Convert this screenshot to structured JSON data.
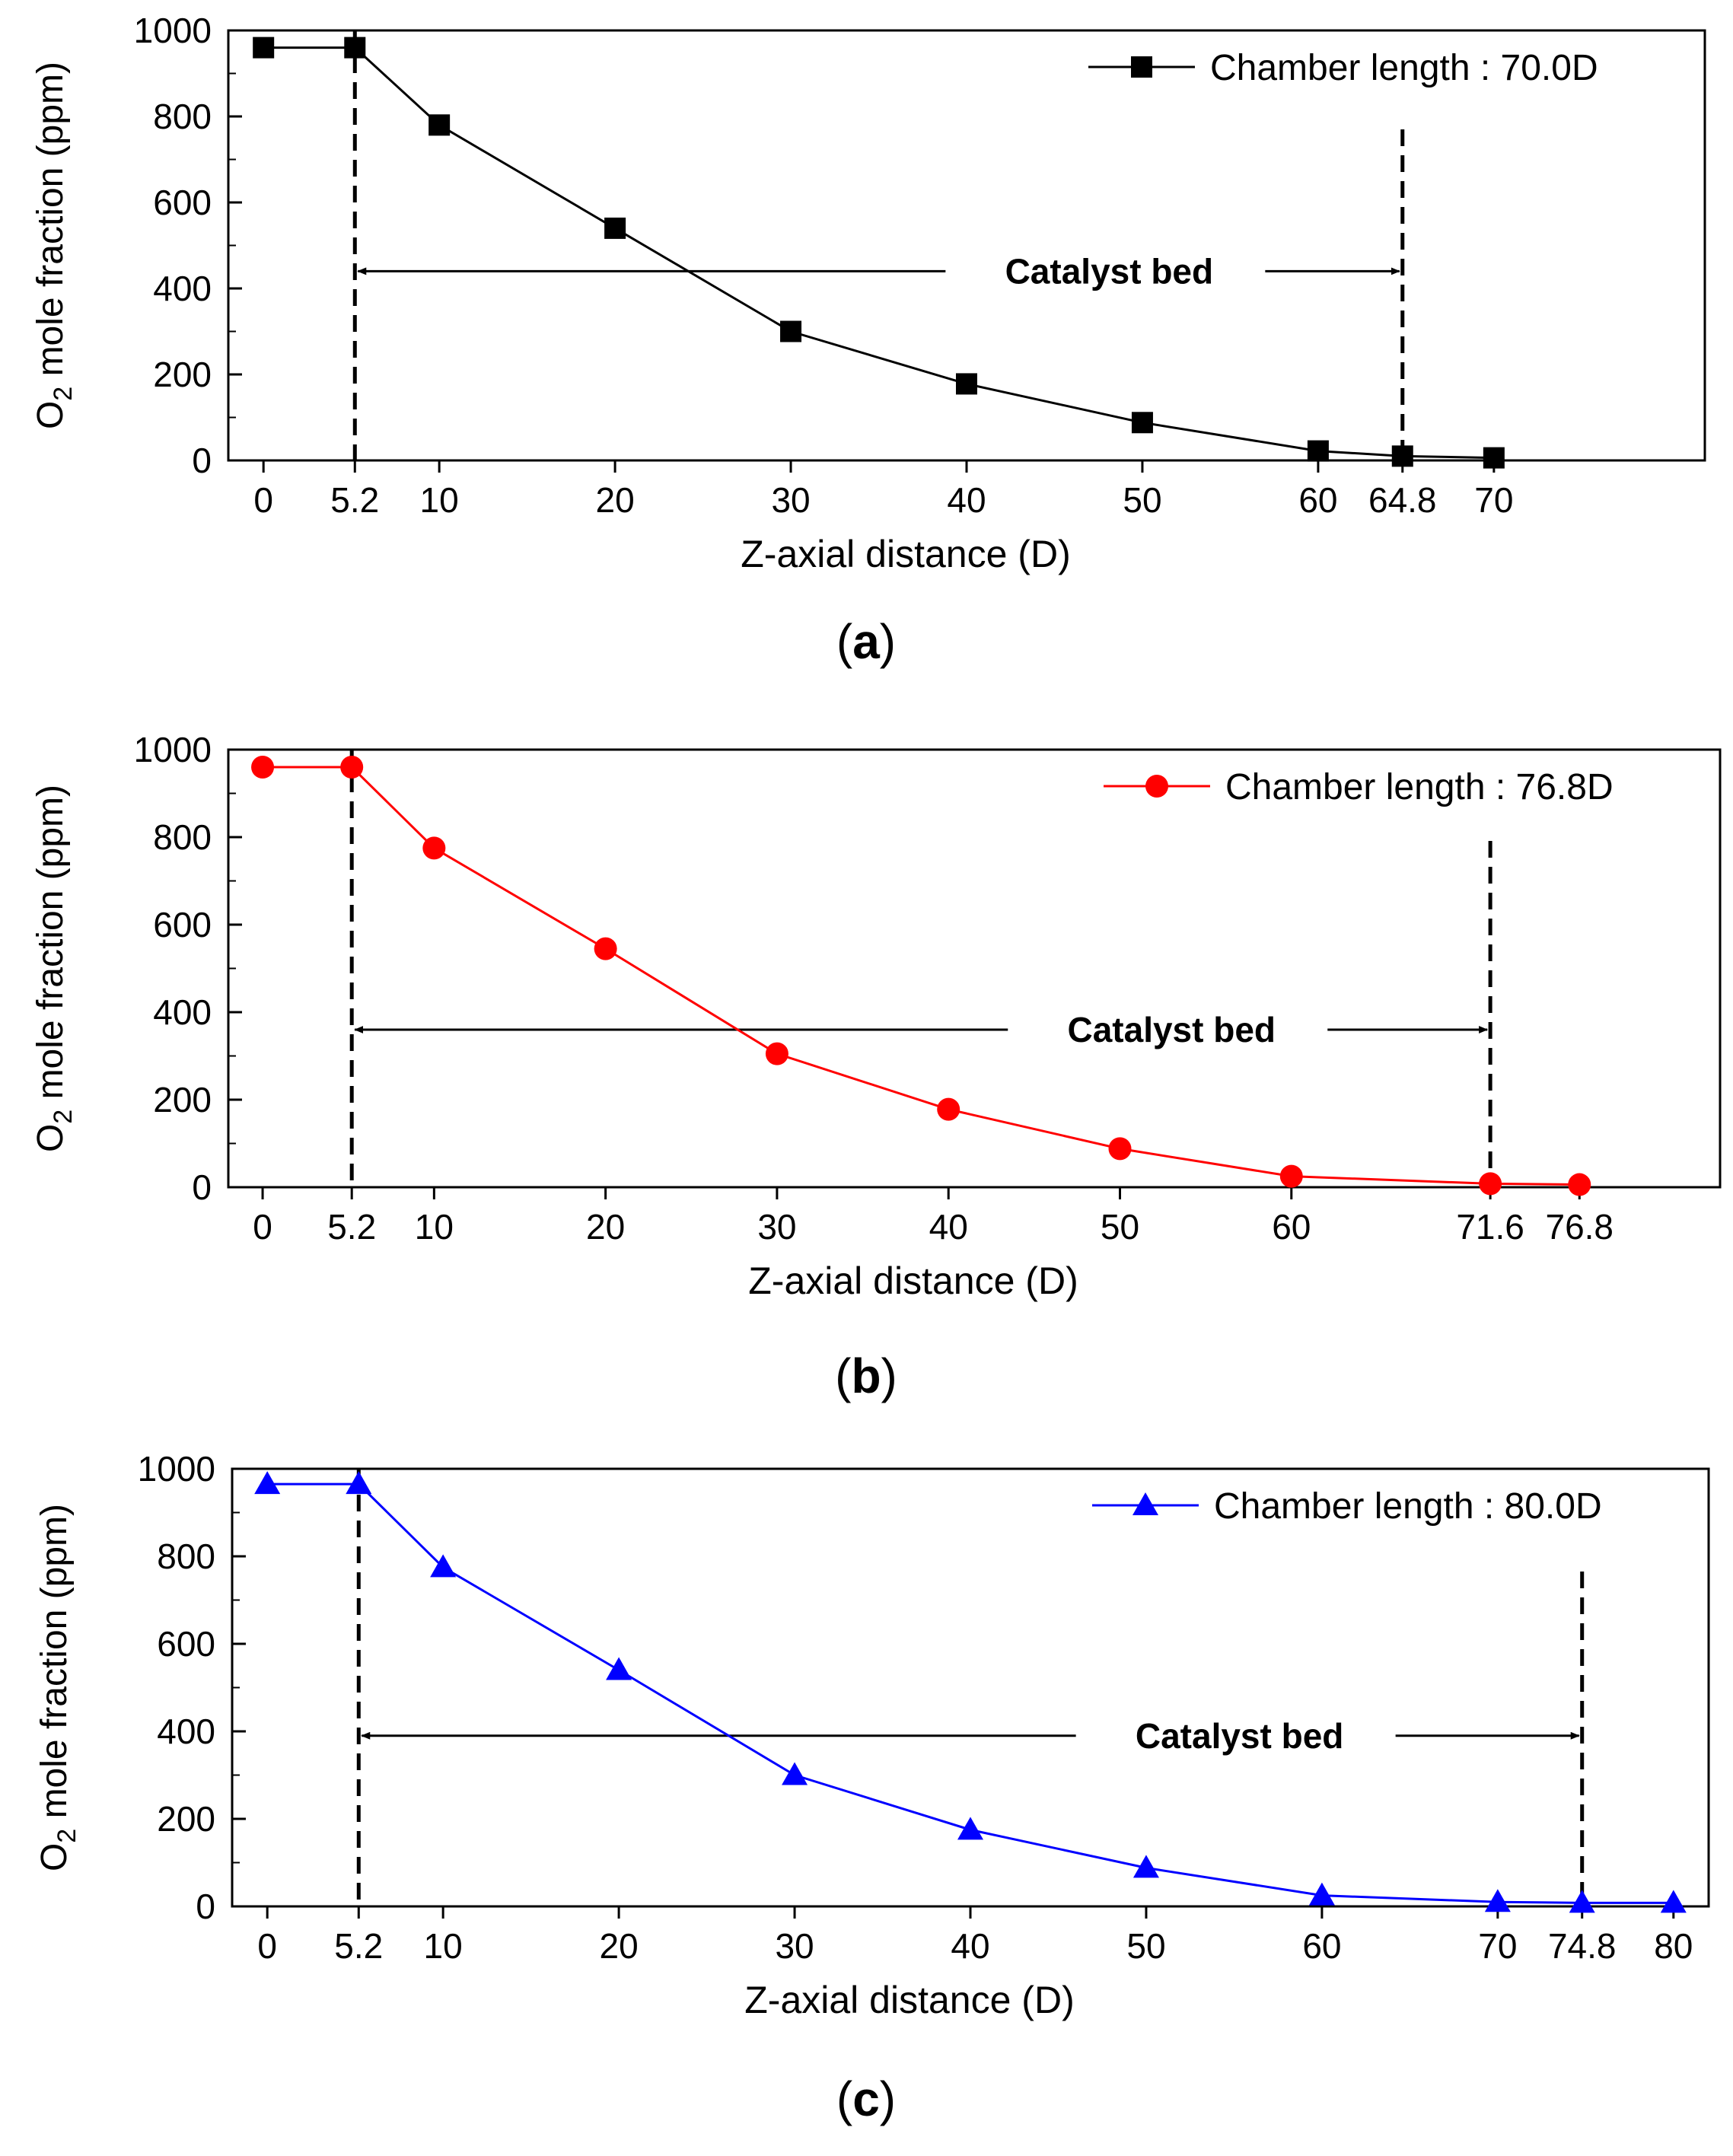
{
  "chart_data": [
    {
      "type": "line",
      "panel_label": "(a)",
      "panel_letter": "a",
      "title": "",
      "xlabel": "Z-axial distance (D)",
      "ylabel_prefix": "O",
      "ylabel_subscript": "2",
      "ylabel_suffix": " mole fraction (ppm)",
      "xlim": [
        -2,
        82
      ],
      "ylim": [
        0,
        1000
      ],
      "x_ticks": [
        0,
        5.2,
        10,
        20,
        30,
        40,
        50,
        60,
        64.8,
        70
      ],
      "x_tick_labels": [
        "0",
        "5.2",
        "10",
        "20",
        "30",
        "40",
        "50",
        "60",
        "64.8",
        "70"
      ],
      "y_ticks": [
        0,
        200,
        400,
        600,
        800,
        1000
      ],
      "y_tick_labels": [
        "0",
        "200",
        "400",
        "600",
        "800",
        "1000"
      ],
      "grid": false,
      "series": [
        {
          "name": "Chamber length : 70.0D",
          "marker": "square",
          "color": "#000000",
          "x": [
            0,
            5.2,
            10,
            20,
            30,
            40,
            50,
            60,
            64.8,
            70
          ],
          "values": [
            960,
            960,
            780,
            540,
            300,
            178,
            88,
            22,
            10,
            6
          ]
        }
      ],
      "legend": "top-right",
      "catalyst_bed": {
        "label": "Catalyst bed",
        "start": 5.2,
        "end": 64.8,
        "arrow_y": 440
      }
    },
    {
      "type": "line",
      "panel_label": "(b)",
      "panel_letter": "b",
      "title": "",
      "xlabel": "Z-axial distance (D)",
      "ylabel_prefix": "O",
      "ylabel_subscript": "2",
      "ylabel_suffix": " mole fraction (ppm)",
      "xlim": [
        -2,
        85
      ],
      "ylim": [
        0,
        1000
      ],
      "x_ticks": [
        0,
        5.2,
        10,
        20,
        30,
        40,
        50,
        60,
        71.6,
        76.8
      ],
      "x_tick_labels": [
        "0",
        "5.2",
        "10",
        "20",
        "30",
        "40",
        "50",
        "60",
        "71.6",
        "76.8"
      ],
      "y_ticks": [
        0,
        200,
        400,
        600,
        800,
        1000
      ],
      "y_tick_labels": [
        "0",
        "200",
        "400",
        "600",
        "800",
        "1000"
      ],
      "grid": false,
      "series": [
        {
          "name": "Chamber length : 76.8D",
          "marker": "circle",
          "color": "#ff0000",
          "x": [
            0,
            5.2,
            10,
            20,
            30,
            40,
            50,
            60,
            71.6,
            76.8
          ],
          "values": [
            960,
            960,
            775,
            545,
            305,
            178,
            88,
            25,
            8,
            6
          ]
        }
      ],
      "legend": "top-right",
      "catalyst_bed": {
        "label": "Catalyst bed",
        "start": 5.2,
        "end": 71.6,
        "arrow_y": 360
      }
    },
    {
      "type": "line",
      "panel_label": "(c)",
      "panel_letter": "c",
      "title": "",
      "xlabel": "Z-axial distance (D)",
      "ylabel_prefix": "O",
      "ylabel_subscript": "2",
      "ylabel_suffix": " mole fraction (ppm)",
      "xlim": [
        -2,
        82
      ],
      "ylim": [
        0,
        1000
      ],
      "x_ticks": [
        0,
        5.2,
        10,
        20,
        30,
        40,
        50,
        60,
        70,
        74.8,
        80
      ],
      "x_tick_labels": [
        "0",
        "5.2",
        "10",
        "20",
        "30",
        "40",
        "50",
        "60",
        "70",
        "74.8",
        "80"
      ],
      "y_ticks": [
        0,
        200,
        400,
        600,
        800,
        1000
      ],
      "y_tick_labels": [
        "0",
        "200",
        "400",
        "600",
        "800",
        "1000"
      ],
      "grid": false,
      "series": [
        {
          "name": "Chamber length : 80.0D",
          "marker": "triangle",
          "color": "#0000ff",
          "x": [
            0,
            5.2,
            10,
            20,
            30,
            40,
            50,
            60,
            70,
            74.8,
            80
          ],
          "values": [
            965,
            965,
            775,
            540,
            300,
            175,
            88,
            25,
            10,
            8,
            8
          ]
        }
      ],
      "legend": "top-right",
      "catalyst_bed": {
        "label": "Catalyst bed",
        "start": 5.2,
        "end": 74.8,
        "arrow_y": 390
      }
    }
  ]
}
